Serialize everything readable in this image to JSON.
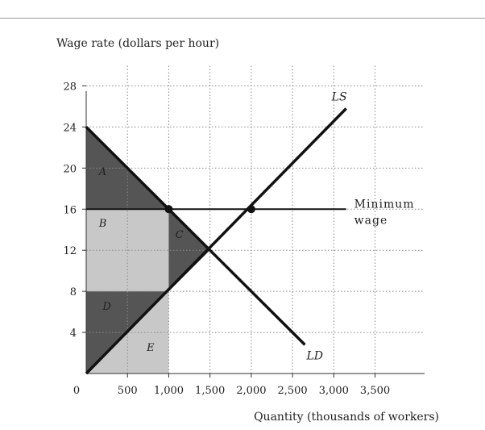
{
  "chart_data": {
    "type": "line",
    "title": "",
    "ylabel": "Wage rate (dollars per hour)",
    "xlabel": "Quantity (thousands of workers)",
    "origin_label": "0",
    "x_ticks": [
      "500",
      "1,000",
      "1,500",
      "2,000",
      "2,500",
      "3,000",
      "3,500"
    ],
    "x_tick_values": [
      500,
      1000,
      1500,
      2000,
      2500,
      3000,
      3500
    ],
    "y_ticks": [
      "4",
      "8",
      "12",
      "16",
      "20",
      "24",
      "28"
    ],
    "y_tick_values": [
      4,
      8,
      12,
      16,
      20,
      24,
      28
    ],
    "xlim": [
      0,
      4100
    ],
    "ylim": [
      0,
      30
    ],
    "grid": true,
    "series": [
      {
        "name": "LS",
        "x": [
          0,
          3150
        ],
        "y": [
          0,
          25.8
        ]
      },
      {
        "name": "LD",
        "x": [
          0,
          2650
        ],
        "y": [
          24,
          2.8
        ]
      }
    ],
    "minimum_wage": {
      "value": 16,
      "x_end": 3150,
      "label_line1": "Minimum",
      "label_line2": "wage"
    },
    "points": [
      {
        "x": 1000,
        "y": 16
      },
      {
        "x": 2000,
        "y": 16
      }
    ],
    "regions": [
      {
        "label": "A",
        "shade": "dark",
        "label_at": [
          200,
          19.3
        ],
        "polygon": [
          [
            0,
            24
          ],
          [
            1000,
            16
          ],
          [
            0,
            16
          ]
        ]
      },
      {
        "label": "B",
        "shade": "light",
        "label_at": [
          200,
          14.3
        ],
        "polygon": [
          [
            0,
            16
          ],
          [
            1000,
            16
          ],
          [
            1000,
            8
          ],
          [
            0,
            8
          ]
        ]
      },
      {
        "label": "C",
        "shade": "dark",
        "label_at": [
          1130,
          13.2
        ],
        "polygon": [
          [
            1000,
            16
          ],
          [
            1500,
            12
          ],
          [
            1000,
            8
          ]
        ]
      },
      {
        "label": "D",
        "shade": "dark",
        "label_at": [
          250,
          6.2
        ],
        "polygon": [
          [
            0,
            0
          ],
          [
            1000,
            8
          ],
          [
            0,
            8
          ]
        ]
      },
      {
        "label": "E",
        "shade": "light",
        "label_at": [
          780,
          2.2
        ],
        "polygon": [
          [
            0,
            0
          ],
          [
            1000,
            0
          ],
          [
            1000,
            8
          ]
        ]
      }
    ],
    "colors": {
      "dark": "#555555",
      "light": "#c8c8c8",
      "line": "#111111",
      "grid": "#8a8a8a"
    }
  }
}
